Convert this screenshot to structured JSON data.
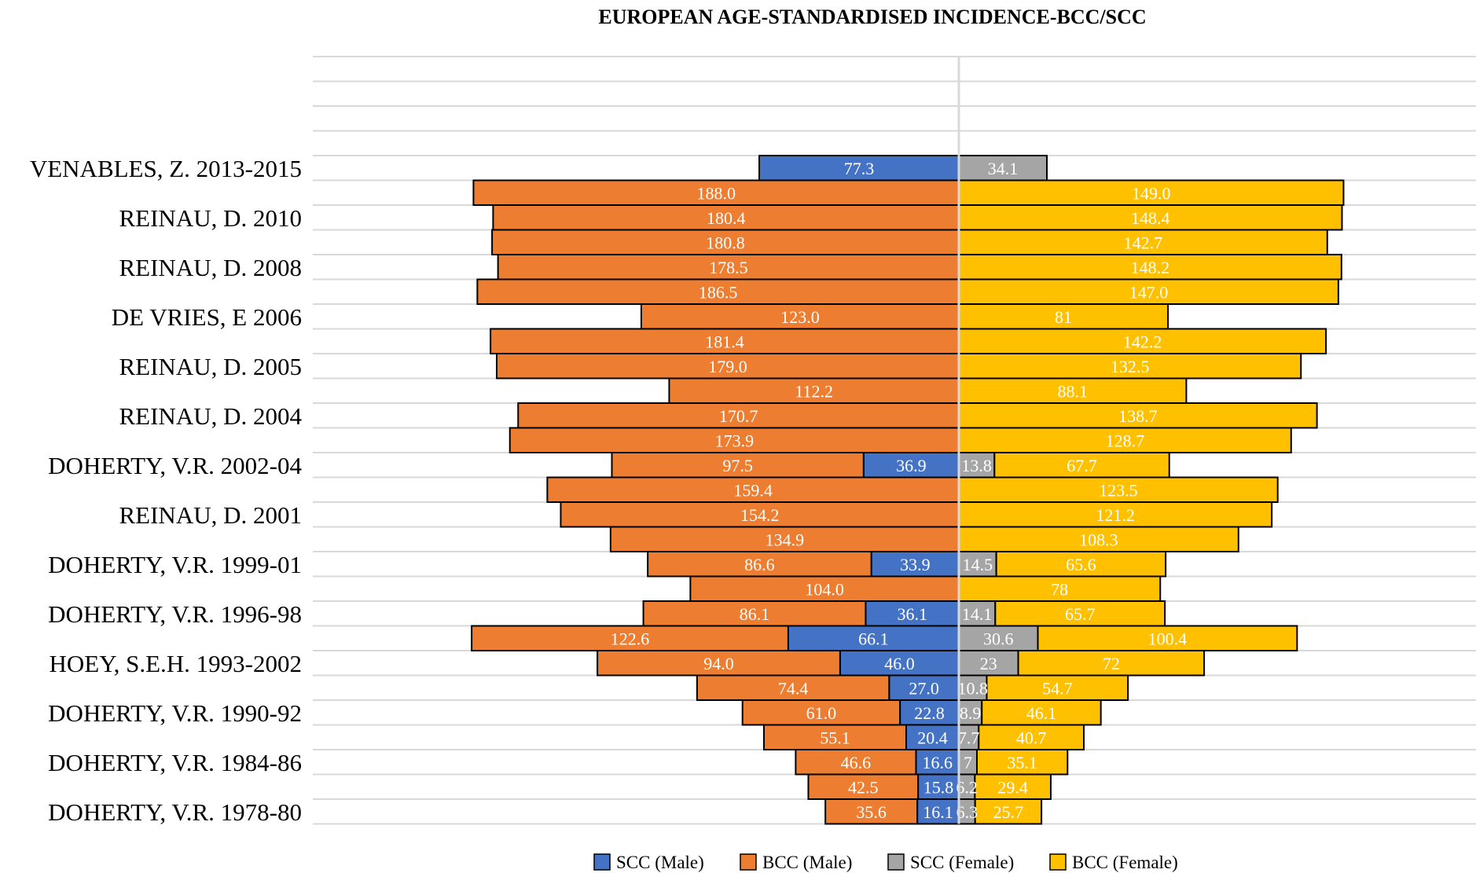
{
  "chart_data": {
    "type": "bar",
    "orientation": "horizontal-diverging",
    "title": "EUROPEAN AGE-STANDARDISED INCIDENCE-BCC/SCC",
    "category_labels": [
      "VENABLES, Z. 2013-2015",
      "REINAU, D. 2010",
      "REINAU, D. 2008",
      "DE VRIES, E 2006",
      "REINAU, D. 2005",
      "REINAU, D. 2004",
      "DOHERTY, V.R. 2002-04",
      "REINAU, D. 2001",
      "DOHERTY, V.R. 1999-01",
      "DOHERTY, V.R. 1996-98",
      "HOEY, S.E.H. 1993-2002",
      "DOHERTY, V.R. 1990-92",
      "DOHERTY, V.R. 1984-86",
      "DOHERTY, V.R. 1978-80"
    ],
    "legend_position": "bottom",
    "grid": "horizontal",
    "series": [
      {
        "name": "SCC (Male)",
        "color": "#4472c4",
        "side": "left"
      },
      {
        "name": "BCC (Male)",
        "color": "#ed7d31",
        "side": "left"
      },
      {
        "name": "SCC (Female)",
        "color": "#a5a5a5",
        "side": "right"
      },
      {
        "name": "BCC (Female)",
        "color": "#ffc000",
        "side": "right"
      }
    ],
    "rows": [
      {
        "scc_male": "77.3",
        "bcc_male": "",
        "scc_female": "34.1",
        "bcc_female": ""
      },
      {
        "scc_male": "",
        "bcc_male": "188.0",
        "scc_female": "",
        "bcc_female": "149.0"
      },
      {
        "scc_male": "",
        "bcc_male": "180.4",
        "scc_female": "",
        "bcc_female": "148.4"
      },
      {
        "scc_male": "",
        "bcc_male": "180.8",
        "scc_female": "",
        "bcc_female": "142.7"
      },
      {
        "scc_male": "",
        "bcc_male": "178.5",
        "scc_female": "",
        "bcc_female": "148.2"
      },
      {
        "scc_male": "",
        "bcc_male": "186.5",
        "scc_female": "",
        "bcc_female": "147.0"
      },
      {
        "scc_male": "",
        "bcc_male": "123.0",
        "scc_female": "",
        "bcc_female": "81"
      },
      {
        "scc_male": "",
        "bcc_male": "181.4",
        "scc_female": "",
        "bcc_female": "142.2"
      },
      {
        "scc_male": "",
        "bcc_male": "179.0",
        "scc_female": "",
        "bcc_female": "132.5"
      },
      {
        "scc_male": "",
        "bcc_male": "112.2",
        "scc_female": "",
        "bcc_female": "88.1"
      },
      {
        "scc_male": "",
        "bcc_male": "170.7",
        "scc_female": "",
        "bcc_female": "138.7"
      },
      {
        "scc_male": "",
        "bcc_male": "173.9",
        "scc_female": "",
        "bcc_female": "128.7"
      },
      {
        "scc_male": "36.9",
        "bcc_male": "97.5",
        "scc_female": "13.8",
        "bcc_female": "67.7"
      },
      {
        "scc_male": "",
        "bcc_male": "159.4",
        "scc_female": "",
        "bcc_female": "123.5"
      },
      {
        "scc_male": "",
        "bcc_male": "154.2",
        "scc_female": "",
        "bcc_female": "121.2"
      },
      {
        "scc_male": "",
        "bcc_male": "134.9",
        "scc_female": "",
        "bcc_female": "108.3"
      },
      {
        "scc_male": "33.9",
        "bcc_male": "86.6",
        "scc_female": "14.5",
        "bcc_female": "65.6"
      },
      {
        "scc_male": "",
        "bcc_male": "104.0",
        "scc_female": "",
        "bcc_female": "78"
      },
      {
        "scc_male": "36.1",
        "bcc_male": "86.1",
        "scc_female": "14.1",
        "bcc_female": "65.7"
      },
      {
        "scc_male": "66.1",
        "bcc_male": "122.6",
        "scc_female": "30.6",
        "bcc_female": "100.4"
      },
      {
        "scc_male": "46.0",
        "bcc_male": "94.0",
        "scc_female": "23",
        "bcc_female": "72"
      },
      {
        "scc_male": "27.0",
        "bcc_male": "74.4",
        "scc_female": "10.8",
        "bcc_female": "54.7"
      },
      {
        "scc_male": "22.8",
        "bcc_male": "61.0",
        "scc_female": "8.9",
        "bcc_female": "46.1"
      },
      {
        "scc_male": "20.4",
        "bcc_male": "55.1",
        "scc_female": "7.7",
        "bcc_female": "40.7"
      },
      {
        "scc_male": "16.6",
        "bcc_male": "46.6",
        "scc_female": "7",
        "bcc_female": "35.1"
      },
      {
        "scc_male": "15.8",
        "bcc_male": "42.5",
        "scc_female": "6.2",
        "bcc_female": "29.4"
      },
      {
        "scc_male": "16.1",
        "bcc_male": "35.6",
        "scc_female": "6.3",
        "bcc_female": "25.7"
      }
    ]
  }
}
